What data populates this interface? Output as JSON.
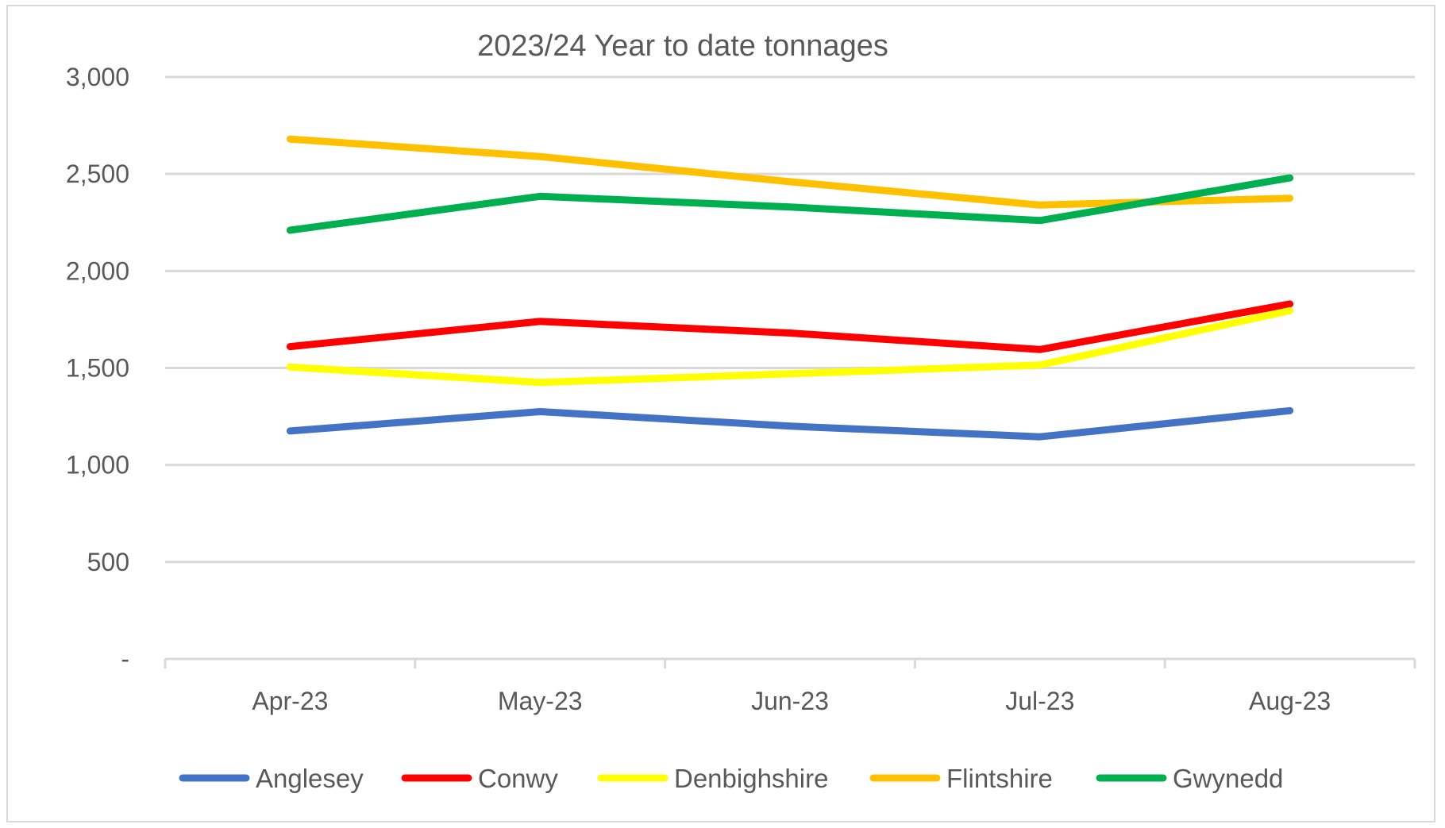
{
  "chart_data": {
    "type": "line",
    "title": "2023/24 Year to date tonnages",
    "xlabel": "",
    "ylabel": "",
    "categories": [
      "Apr-23",
      "May-23",
      "Jun-23",
      "Jul-23",
      "Aug-23"
    ],
    "ylim": [
      0,
      3000
    ],
    "yticks": [
      0,
      500,
      1000,
      1500,
      2000,
      2500,
      3000
    ],
    "ytick_labels": [
      "-",
      "500",
      "1,000",
      "1,500",
      "2,000",
      "2,500",
      "3,000"
    ],
    "grid": true,
    "legend_position": "bottom",
    "series": [
      {
        "name": "Anglesey",
        "color": "#4472c4",
        "values": [
          1175,
          1275,
          1200,
          1145,
          1280
        ]
      },
      {
        "name": "Conwy",
        "color": "#ff0000",
        "values": [
          1610,
          1740,
          1680,
          1595,
          1830
        ]
      },
      {
        "name": "Denbighshire",
        "color": "#ffff00",
        "values": [
          1505,
          1425,
          1470,
          1515,
          1795
        ]
      },
      {
        "name": "Flintshire",
        "color": "#ffc000",
        "values": [
          2680,
          2590,
          2460,
          2340,
          2375
        ]
      },
      {
        "name": "Gwynedd",
        "color": "#00b050",
        "values": [
          2210,
          2385,
          2330,
          2260,
          2480
        ]
      }
    ]
  }
}
